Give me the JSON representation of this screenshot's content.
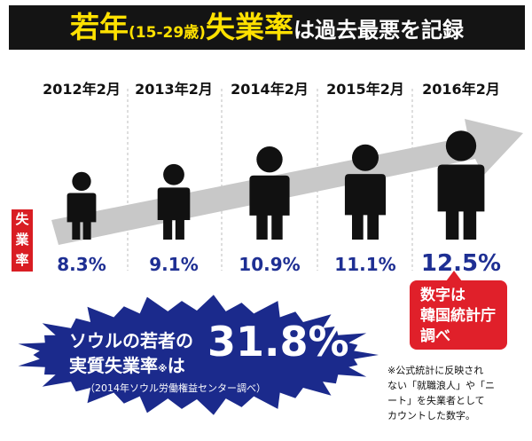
{
  "title": {
    "part1": "若年",
    "part2": "(15-29歳)",
    "part3": "失業率",
    "part4": "は過去最悪を記録"
  },
  "side_label": [
    "失",
    "業",
    "率"
  ],
  "chart_data": {
    "type": "bar",
    "categories": [
      "2012年2月",
      "2013年2月",
      "2014年2月",
      "2015年2月",
      "2016年2月"
    ],
    "values": [
      8.3,
      9.1,
      10.9,
      11.1,
      12.5
    ],
    "value_labels": [
      "8.3%",
      "9.1%",
      "10.9%",
      "11.1%",
      "12.5%"
    ],
    "ylabel": "失業率"
  },
  "callout": {
    "lines": [
      "数字は",
      "韓国統計庁",
      "調べ"
    ]
  },
  "burst": {
    "line1": "ソウルの若者の",
    "line2": "実質失業率",
    "note_mark": "※",
    "ha": "は",
    "value": "31.8%",
    "source": "（2014年ソウル労働権益センター調べ）"
  },
  "footnote": {
    "lines": [
      "※公式統計に反映され",
      "ない「就職浪人」や「ニ",
      "ート」を失業者として",
      "カウントした数字。"
    ]
  },
  "colors": {
    "figure": "#111111",
    "value_text": "#1e2f93",
    "accent_red": "#e0202a",
    "burst_fill": "#1b2a8c",
    "arrow": "#c8c8c8",
    "title_yellow": "#ffe100"
  }
}
